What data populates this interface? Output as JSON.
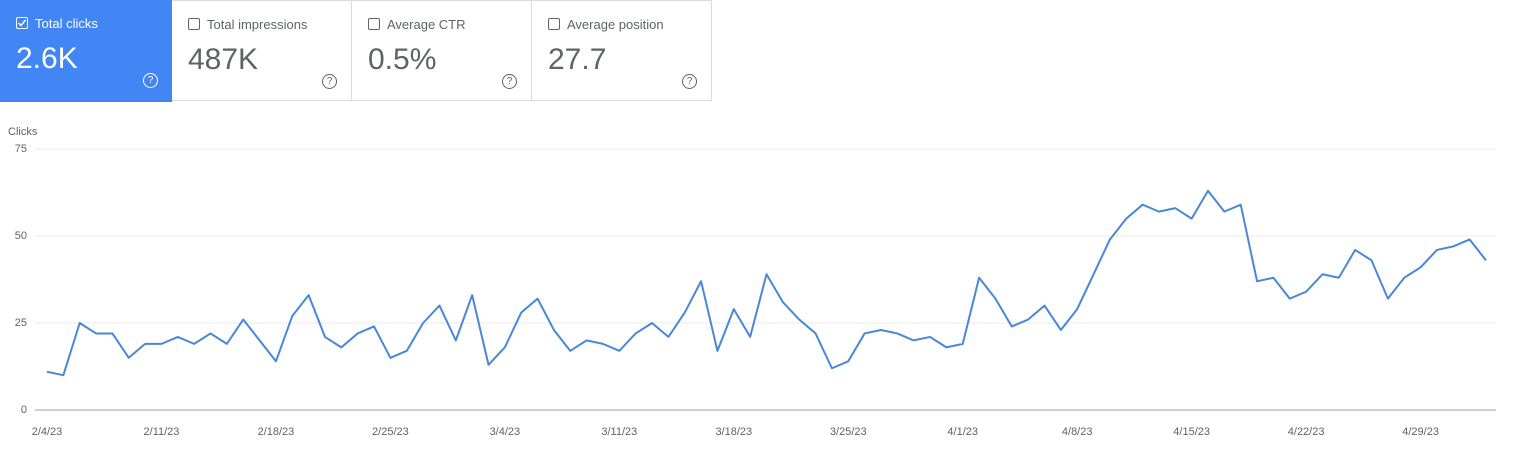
{
  "cards": [
    {
      "label": "Total clicks",
      "value": "2.6K",
      "selected": true
    },
    {
      "label": "Total impressions",
      "value": "487K",
      "selected": false
    },
    {
      "label": "Average CTR",
      "value": "0.5%",
      "selected": false
    },
    {
      "label": "Average position",
      "value": "27.7",
      "selected": false
    }
  ],
  "chart_data": {
    "type": "line",
    "y_label": "Clicks",
    "color": "#4a87d8",
    "x": [
      "2/4/23",
      "2/5/23",
      "2/6/23",
      "2/7/23",
      "2/8/23",
      "2/9/23",
      "2/10/23",
      "2/11/23",
      "2/12/23",
      "2/13/23",
      "2/14/23",
      "2/15/23",
      "2/16/23",
      "2/17/23",
      "2/18/23",
      "2/19/23",
      "2/20/23",
      "2/21/23",
      "2/22/23",
      "2/23/23",
      "2/24/23",
      "2/25/23",
      "2/26/23",
      "2/27/23",
      "2/28/23",
      "3/1/23",
      "3/2/23",
      "3/3/23",
      "3/4/23",
      "3/5/23",
      "3/6/23",
      "3/7/23",
      "3/8/23",
      "3/9/23",
      "3/10/23",
      "3/11/23",
      "3/12/23",
      "3/13/23",
      "3/14/23",
      "3/15/23",
      "3/16/23",
      "3/17/23",
      "3/18/23",
      "3/19/23",
      "3/20/23",
      "3/21/23",
      "3/22/23",
      "3/23/23",
      "3/24/23",
      "3/25/23",
      "3/26/23",
      "3/27/23",
      "3/28/23",
      "3/29/23",
      "3/30/23",
      "3/31/23",
      "4/1/23",
      "4/2/23",
      "4/3/23",
      "4/4/23",
      "4/5/23",
      "4/6/23",
      "4/7/23",
      "4/8/23",
      "4/9/23",
      "4/10/23",
      "4/11/23",
      "4/12/23",
      "4/13/23",
      "4/14/23",
      "4/15/23",
      "4/16/23",
      "4/17/23",
      "4/18/23",
      "4/19/23",
      "4/20/23",
      "4/21/23",
      "4/22/23",
      "4/23/23",
      "4/24/23",
      "4/25/23",
      "4/26/23",
      "4/27/23",
      "4/28/23",
      "4/29/23",
      "4/30/23",
      "5/1/23",
      "5/2/23",
      "5/3/23"
    ],
    "values": [
      11,
      10,
      25,
      22,
      22,
      15,
      19,
      19,
      21,
      19,
      22,
      19,
      26,
      20,
      14,
      27,
      33,
      21,
      18,
      22,
      24,
      15,
      17,
      25,
      30,
      20,
      33,
      13,
      18,
      28,
      32,
      23,
      17,
      20,
      19,
      17,
      22,
      25,
      21,
      28,
      37,
      17,
      29,
      21,
      39,
      31,
      26,
      22,
      12,
      14,
      22,
      23,
      22,
      20,
      21,
      18,
      19,
      38,
      32,
      24,
      26,
      30,
      23,
      29,
      39,
      49,
      55,
      59,
      57,
      58,
      55,
      63,
      57,
      59,
      37,
      38,
      32,
      34,
      39,
      38,
      46,
      43,
      32,
      38,
      41,
      46,
      47,
      49,
      43
    ],
    "xticks": [
      "2/4/23",
      "2/11/23",
      "2/18/23",
      "2/25/23",
      "3/4/23",
      "3/11/23",
      "3/18/23",
      "3/25/23",
      "4/1/23",
      "4/8/23",
      "4/15/23",
      "4/22/23",
      "4/29/23"
    ],
    "ylim": [
      0,
      75
    ],
    "yticks": [
      0,
      25,
      50,
      75
    ],
    "grid": true
  }
}
